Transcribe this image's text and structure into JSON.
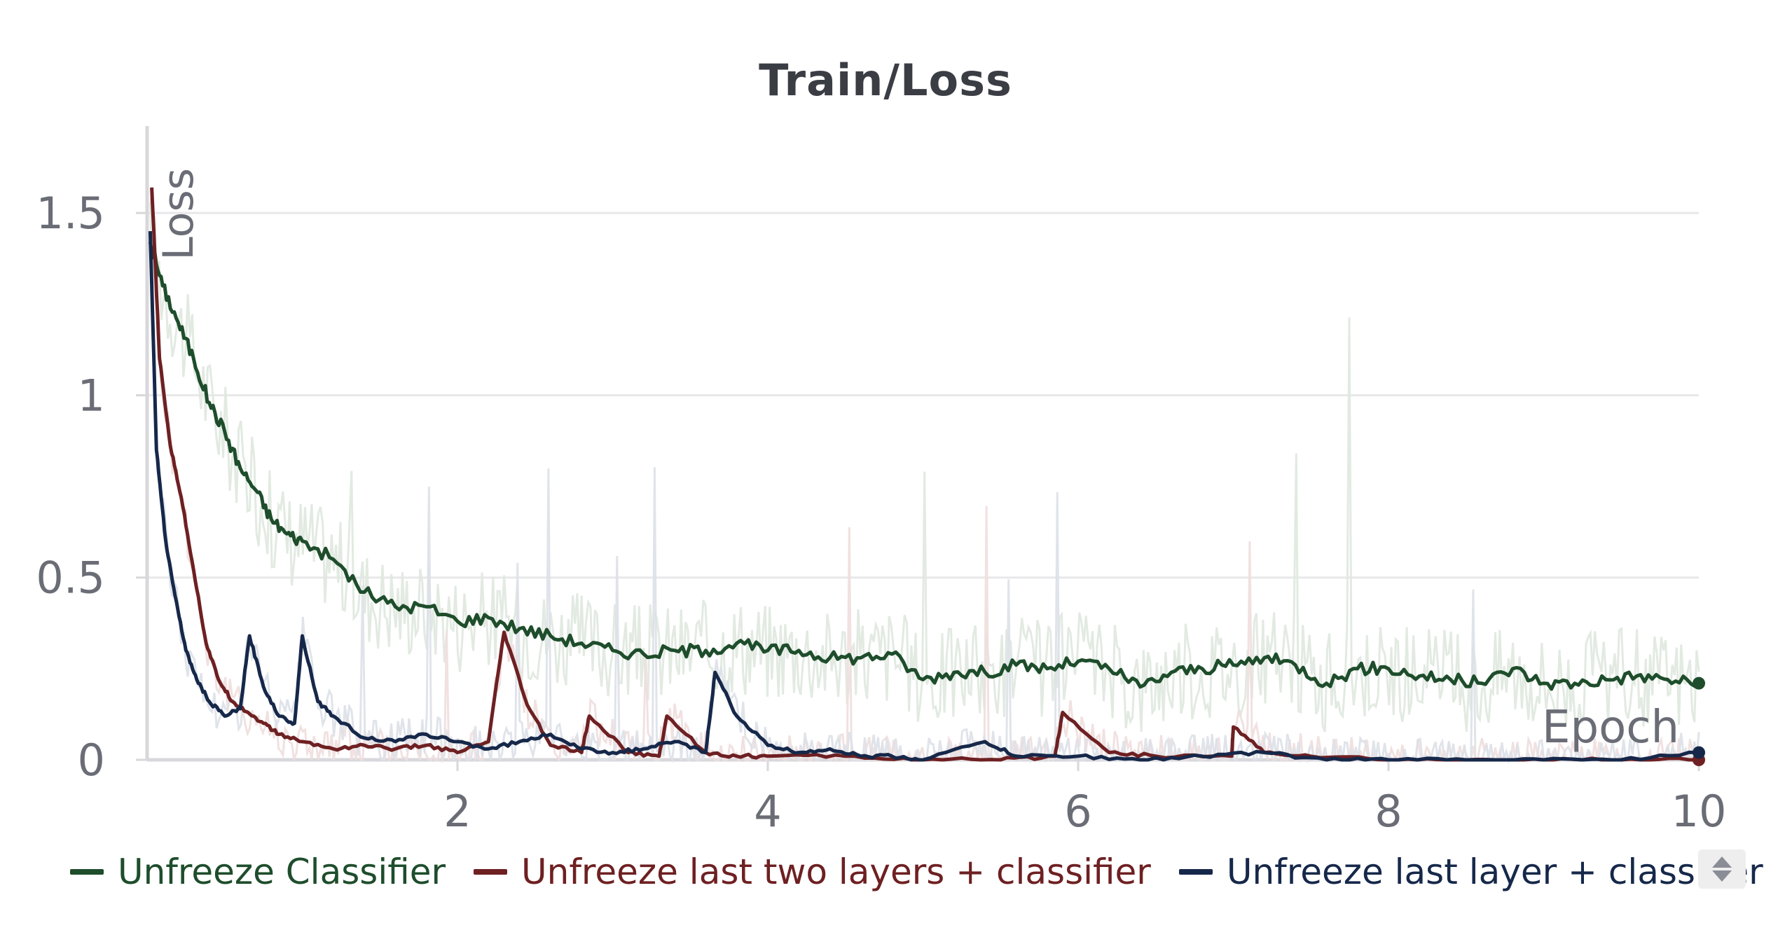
{
  "chart_data": {
    "type": "line",
    "title": "Train/Loss",
    "xlabel": "Epoch",
    "ylabel": "Loss",
    "xlim": [
      0,
      10
    ],
    "ylim": [
      0,
      1.7
    ],
    "x_ticks": [
      2,
      4,
      6,
      8,
      10
    ],
    "y_ticks": [
      0,
      0.5,
      1,
      1.5
    ],
    "y_tick_labels": [
      "0",
      "0.5",
      "1",
      "1.5"
    ],
    "x_tick_labels": [
      "2",
      "4",
      "6",
      "8",
      "10"
    ],
    "grid": true,
    "legend_position": "bottom",
    "series": [
      {
        "name": "Unfreeze Classifier",
        "color": "#1e4d2b",
        "x": [
          0.02,
          0.1,
          0.2,
          0.3,
          0.4,
          0.5,
          0.6,
          0.7,
          0.8,
          0.9,
          1.0,
          1.2,
          1.4,
          1.6,
          1.8,
          2.0,
          2.2,
          2.4,
          2.6,
          2.8,
          3.0,
          3.2,
          3.4,
          3.6,
          3.8,
          4.0,
          4.2,
          4.4,
          4.6,
          4.8,
          5.0,
          5.2,
          5.4,
          5.6,
          5.8,
          6.0,
          6.2,
          6.4,
          6.6,
          6.8,
          7.0,
          7.2,
          7.4,
          7.6,
          7.8,
          8.0,
          8.2,
          8.4,
          8.6,
          8.8,
          9.0,
          9.2,
          9.4,
          9.6,
          9.8,
          10.0
        ],
        "values": [
          1.42,
          1.3,
          1.2,
          1.1,
          0.98,
          0.9,
          0.8,
          0.74,
          0.66,
          0.62,
          0.6,
          0.55,
          0.46,
          0.42,
          0.42,
          0.38,
          0.39,
          0.36,
          0.34,
          0.32,
          0.3,
          0.29,
          0.3,
          0.3,
          0.32,
          0.3,
          0.3,
          0.28,
          0.28,
          0.29,
          0.22,
          0.24,
          0.24,
          0.26,
          0.25,
          0.27,
          0.25,
          0.2,
          0.24,
          0.25,
          0.26,
          0.28,
          0.26,
          0.21,
          0.25,
          0.25,
          0.23,
          0.22,
          0.21,
          0.25,
          0.21,
          0.21,
          0.22,
          0.23,
          0.22,
          0.21
        ]
      },
      {
        "name": "Unfreeze last two layers + classifier",
        "color": "#6e2022",
        "x": [
          0.03,
          0.08,
          0.15,
          0.22,
          0.3,
          0.38,
          0.46,
          0.55,
          0.65,
          0.75,
          0.85,
          1.0,
          1.2,
          1.4,
          1.6,
          1.8,
          2.0,
          2.2,
          2.3,
          2.45,
          2.6,
          2.8,
          2.85,
          3.1,
          3.3,
          3.35,
          3.6,
          3.8,
          4.0,
          4.5,
          5.0,
          5.5,
          5.85,
          5.9,
          6.2,
          6.5,
          6.99,
          7.0,
          7.2,
          7.5,
          8.0,
          8.5,
          9.0,
          9.5,
          10.0
        ],
        "values": [
          1.57,
          1.1,
          0.86,
          0.72,
          0.52,
          0.32,
          0.22,
          0.16,
          0.13,
          0.1,
          0.07,
          0.05,
          0.03,
          0.04,
          0.03,
          0.04,
          0.02,
          0.05,
          0.35,
          0.15,
          0.04,
          0.02,
          0.12,
          0.02,
          0.01,
          0.12,
          0.02,
          0.01,
          0.01,
          0.01,
          0.0,
          0.0,
          0.01,
          0.13,
          0.02,
          0.01,
          0.01,
          0.09,
          0.02,
          0.01,
          0.0,
          0.0,
          0.0,
          0.0,
          0.0
        ]
      },
      {
        "name": "Unfreeze last layer + classifier",
        "color": "#16284a",
        "x": [
          0.02,
          0.06,
          0.12,
          0.18,
          0.25,
          0.32,
          0.4,
          0.5,
          0.6,
          0.66,
          0.75,
          0.85,
          0.95,
          1.0,
          1.1,
          1.2,
          1.4,
          1.6,
          1.8,
          2.0,
          2.2,
          2.4,
          2.6,
          2.8,
          3.0,
          3.2,
          3.4,
          3.6,
          3.66,
          3.8,
          4.0,
          4.2,
          4.4,
          4.6,
          4.8,
          5.0,
          5.4,
          5.6,
          6.0,
          6.4,
          6.8,
          7.2,
          7.6,
          8.0,
          8.5,
          9.0,
          9.5,
          10.0
        ],
        "values": [
          1.45,
          0.85,
          0.6,
          0.45,
          0.3,
          0.22,
          0.16,
          0.12,
          0.14,
          0.34,
          0.2,
          0.12,
          0.1,
          0.34,
          0.16,
          0.12,
          0.06,
          0.05,
          0.07,
          0.05,
          0.03,
          0.05,
          0.07,
          0.03,
          0.02,
          0.03,
          0.05,
          0.02,
          0.24,
          0.12,
          0.04,
          0.02,
          0.03,
          0.01,
          0.01,
          0.0,
          0.05,
          0.01,
          0.01,
          0.0,
          0.01,
          0.02,
          0.0,
          0.0,
          0.0,
          0.0,
          0.0,
          0.02
        ]
      }
    ]
  },
  "legend": {
    "items": [
      {
        "label": "Unfreeze Classifier",
        "color": "#1e4d2b"
      },
      {
        "label": "Unfreeze last two layers + classifier",
        "color": "#6e2022"
      },
      {
        "label": "Unfreeze last layer + classifier",
        "color": "#16284a"
      }
    ]
  },
  "colors": {
    "grid": "#e8e8ea",
    "axis": "#d8d8dc",
    "tick_text": "#6a6d76",
    "raw_green": "#dfe8df",
    "raw_red": "#f0dede",
    "raw_blue": "#dde1e8"
  }
}
